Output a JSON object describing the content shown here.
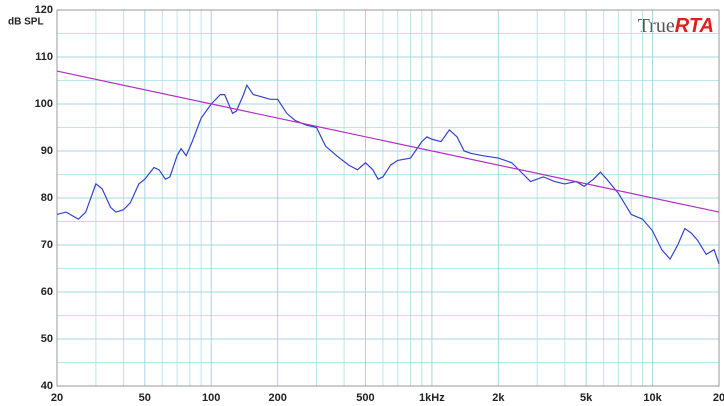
{
  "chart_data": {
    "type": "line",
    "ylabel": "dB SPL",
    "logo": [
      "True",
      "RTA"
    ],
    "xscale": "log",
    "grid": true,
    "xlim": [
      20,
      20000
    ],
    "ylim": [
      40,
      120
    ],
    "xticks": [
      20,
      50,
      100,
      200,
      500,
      {
        "value": 1000,
        "label": "1kHz"
      },
      {
        "value": 2000,
        "label": "2k"
      },
      {
        "value": 5000,
        "label": "5k"
      },
      {
        "value": 10000,
        "label": "10k"
      },
      {
        "value": 20000,
        "label": "20"
      }
    ],
    "yticks": [
      40,
      50,
      60,
      70,
      80,
      90,
      100,
      110,
      120
    ],
    "x_grid": [
      30,
      40,
      60,
      70,
      80,
      90,
      300,
      400,
      600,
      700,
      800,
      900,
      3000,
      4000,
      6000,
      7000,
      8000,
      9000
    ],
    "y_grid": [
      45,
      55,
      65,
      75,
      85,
      95,
      105,
      115
    ],
    "series": [
      {
        "color": "#3344cc",
        "x": [
          20,
          22,
          25,
          27,
          30,
          32,
          35,
          37,
          40,
          43,
          47,
          50,
          55,
          58,
          62,
          65,
          70,
          73,
          77,
          82,
          90,
          100,
          110,
          115,
          125,
          130,
          140,
          145,
          155,
          170,
          185,
          200,
          220,
          240,
          270,
          300,
          330,
          370,
          420,
          460,
          500,
          540,
          570,
          600,
          650,
          700,
          800,
          900,
          950,
          1000,
          1100,
          1200,
          1300,
          1400,
          1500,
          1700,
          2000,
          2300,
          2600,
          2800,
          3200,
          3600,
          4000,
          4500,
          4900,
          5400,
          5800,
          6200,
          7000,
          8000,
          9000,
          10000,
          11000,
          12000,
          13000,
          14000,
          15000,
          16000,
          17500,
          19000,
          20000
        ],
        "values": [
          76.5,
          77,
          75.5,
          77,
          83,
          82,
          78,
          77,
          77.5,
          79,
          83,
          84,
          86.5,
          86,
          84,
          84.5,
          89,
          90.5,
          89,
          92,
          97,
          100,
          102,
          102,
          98,
          98.5,
          102,
          104,
          102,
          101.5,
          101,
          101,
          98,
          96.5,
          95.5,
          95,
          91,
          89,
          87,
          86,
          87.5,
          86,
          84,
          84.5,
          87,
          88,
          88.5,
          92,
          93,
          92.5,
          92,
          94.5,
          93,
          90,
          89.5,
          89,
          88.5,
          87.5,
          85,
          83.5,
          84.5,
          83.5,
          83,
          83.5,
          82.5,
          84,
          85.5,
          84,
          81,
          76.5,
          75.5,
          73,
          69,
          67,
          70,
          73.5,
          72.5,
          71,
          68,
          69,
          66
        ]
      },
      {
        "color": "#b030c0",
        "x": [
          20,
          20000
        ],
        "values": [
          107,
          77
        ]
      }
    ]
  }
}
